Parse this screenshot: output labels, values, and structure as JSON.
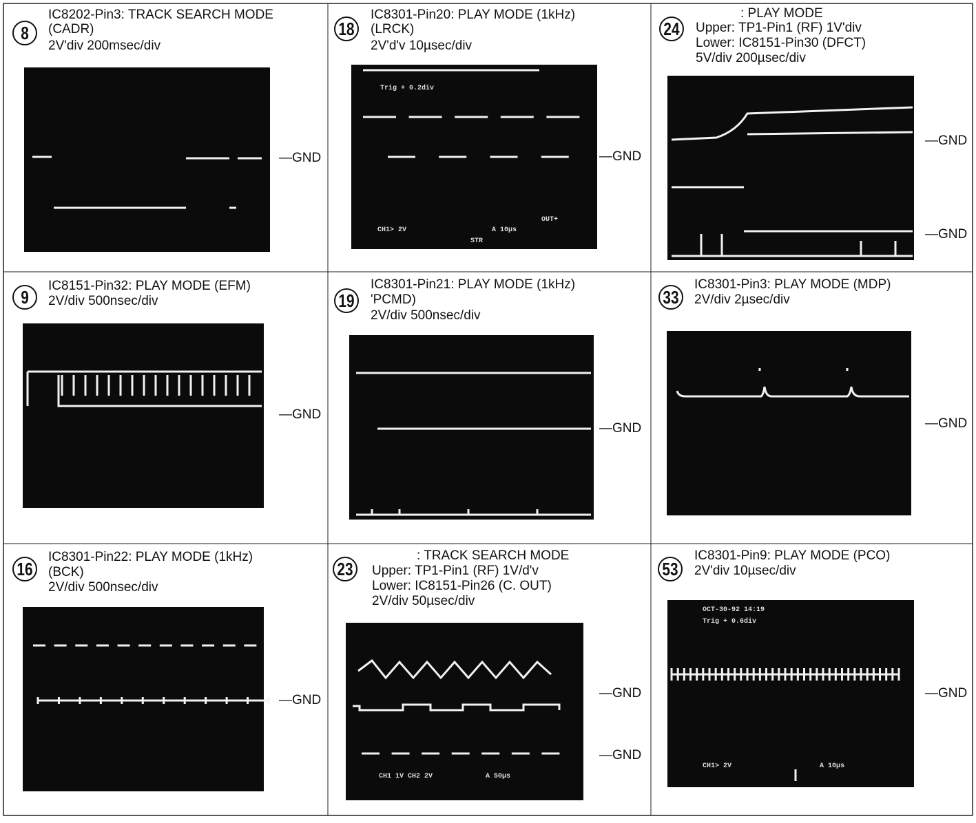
{
  "cells": [
    {
      "number": "8",
      "lines": [
        "IC8202-Pin3: TRACK SEARCH MODE",
        "(CADR)",
        "2V'div   200msec/div"
      ],
      "gnd": [
        "—GND"
      ],
      "screen_text": []
    },
    {
      "number": "18",
      "lines": [
        "IC8301-Pin20: PLAY MODE (1kHz)",
        "(LRCK)",
        "2V'd'v   10µsec/div"
      ],
      "gnd": [
        "—GND"
      ],
      "screen_text": [
        "Trig + 0.2div",
        "CH1> 2V",
        "A 10µs",
        "OUT+",
        "STR"
      ]
    },
    {
      "number": "24",
      "lines": [
        ": PLAY MODE",
        "Upper: TP1-Pin1 (RF) 1V'div",
        "Lower: IC8151-Pin30 (DFCT)",
        "5V/div   200µsec/div"
      ],
      "gnd": [
        "—GND",
        "—GND"
      ],
      "screen_text": []
    },
    {
      "number": "9",
      "lines": [
        "IC8151-Pin32: PLAY MODE (EFM)",
        "2V/div   500nsec/div"
      ],
      "gnd": [
        "—GND"
      ],
      "screen_text": []
    },
    {
      "number": "19",
      "lines": [
        "IC8301-Pin21: PLAY MODE (1kHz)",
        "'PCMD)",
        "2V/div   500nsec/div"
      ],
      "gnd": [
        "—GND"
      ],
      "screen_text": []
    },
    {
      "number": "33",
      "lines": [
        "IC8301-Pin3: PLAY MODE (MDP)",
        "2V/div   2µsec/div"
      ],
      "gnd": [
        "—GND"
      ],
      "screen_text": []
    },
    {
      "number": "16",
      "lines": [
        "IC8301-Pin22: PLAY MODE (1kHz)",
        "(BCK)",
        "2V/div   500nsec/div"
      ],
      "gnd": [
        "—GND"
      ],
      "screen_text": []
    },
    {
      "number": "23",
      "lines": [
        ": TRACK SEARCH MODE",
        "Upper: TP1-Pin1 (RF) 1V/d'v",
        "Lower: IC8151-Pin26 (C. OUT)",
        "2V/div   50µsec/div"
      ],
      "gnd": [
        "—GND",
        "—GND"
      ],
      "screen_text": [
        "CH1 1V  CH2 2V",
        "A 50µs"
      ]
    },
    {
      "number": "53",
      "lines": [
        "IC8301-Pin9: PLAY MODE (PCO)",
        "2V'div   10µsec/div"
      ],
      "gnd": [
        "—GND"
      ],
      "screen_text": [
        "OCT-30-92 14:19",
        "Trig + 0.6div",
        "CH1> 2V",
        "A 10µs"
      ]
    }
  ]
}
